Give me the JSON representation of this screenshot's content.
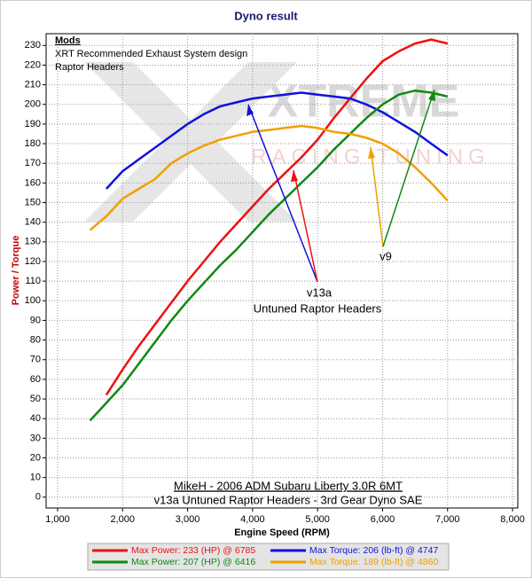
{
  "chart_data": {
    "type": "line",
    "title": "Dyno result",
    "x_label": "Engine Speed (RPM)",
    "y_label": "Power / Torque",
    "watermark": [
      "XTREME",
      "RACING TUNING"
    ],
    "mods": [
      "Mods",
      "XRT Recommended Exhaust System design",
      "Raptor Headers"
    ],
    "annotations": [
      "v13a",
      "Untuned Raptor Headers",
      "v9"
    ],
    "caption": [
      "MikeH - 2006 ADM Subaru Liberty 3.0R 6MT",
      "v13a Untuned Raptor Headers - 3rd Gear Dyno SAE"
    ],
    "x": [
      1500,
      1750,
      2000,
      2250,
      2500,
      2750,
      3000,
      3250,
      3500,
      3750,
      4000,
      4250,
      4500,
      4750,
      5000,
      5250,
      5500,
      5750,
      6000,
      6250,
      6500,
      6750,
      7000
    ],
    "series": [
      {
        "name": "Max Power: 233 (HP) @ 6785",
        "color": "#ee1111",
        "values": [
          null,
          52,
          65,
          77,
          88,
          99,
          110,
          120,
          130,
          139,
          148,
          157,
          165,
          173,
          182,
          193,
          203,
          213,
          222,
          227,
          231,
          233,
          231
        ]
      },
      {
        "name": "Max Torque: 206 (lb-ft) @ 4747",
        "color": "#1111dd",
        "values": [
          null,
          157,
          166,
          172,
          178,
          184,
          190,
          195,
          199,
          201,
          203,
          204,
          205,
          206,
          205,
          204,
          203,
          200,
          196,
          191,
          186,
          180,
          174
        ]
      },
      {
        "name": "Max Power: 207 (HP) @ 6416",
        "color": "#118811",
        "values": [
          39,
          48,
          57,
          68,
          79,
          90,
          100,
          109,
          118,
          126,
          135,
          144,
          152,
          160,
          168,
          177,
          185,
          193,
          200,
          205,
          207,
          206,
          204
        ]
      },
      {
        "name": "Max Torque: 189 (lb-ft) @ 4860",
        "color": "#f0a000",
        "values": [
          136,
          143,
          152,
          157,
          162,
          170,
          175,
          179,
          182,
          184,
          186,
          187,
          188,
          189,
          188,
          186,
          185,
          183,
          180,
          175,
          168,
          160,
          151
        ]
      }
    ],
    "xlim": [
      823,
      8081
    ],
    "ylim": [
      -5.5,
      236
    ],
    "xticks": [
      {
        "value": 1000,
        "label": "1,000"
      },
      {
        "value": 2000,
        "label": "2,000"
      },
      {
        "value": 3000,
        "label": "3,000"
      },
      {
        "value": 4000,
        "label": "4,000"
      },
      {
        "value": 5000,
        "label": "5,000"
      },
      {
        "value": 6000,
        "label": "6,000"
      },
      {
        "value": 7000,
        "label": "7,000"
      },
      {
        "value": 8000,
        "label": "8,000"
      }
    ],
    "yticks": [
      0,
      10,
      20,
      30,
      40,
      50,
      60,
      70,
      80,
      90,
      100,
      110,
      120,
      130,
      140,
      150,
      160,
      170,
      180,
      190,
      200,
      210,
      220,
      230
    ],
    "grid": true
  }
}
